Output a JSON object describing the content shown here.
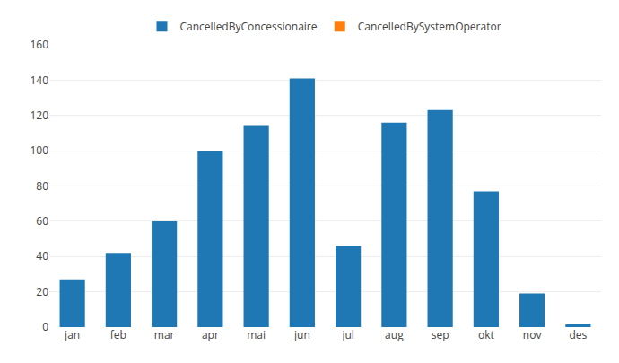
{
  "chart_data": {
    "type": "bar",
    "categories": [
      "jan",
      "feb",
      "mar",
      "apr",
      "mai",
      "jun",
      "jul",
      "aug",
      "sep",
      "okt",
      "nov",
      "des"
    ],
    "series": [
      {
        "name": "CancelledByConcessionaire",
        "values": [
          27,
          42,
          60,
          100,
          114,
          141,
          46,
          116,
          123,
          77,
          19,
          2
        ]
      },
      {
        "name": "CancelledBySystemOperator",
        "values": [
          0,
          0,
          0,
          0,
          0,
          0,
          0,
          0,
          0,
          0,
          0,
          0
        ]
      }
    ],
    "ylim": [
      0,
      160
    ],
    "yticks": [
      0,
      20,
      40,
      60,
      80,
      100,
      120,
      140,
      160
    ],
    "grid": true,
    "legend": "top"
  }
}
